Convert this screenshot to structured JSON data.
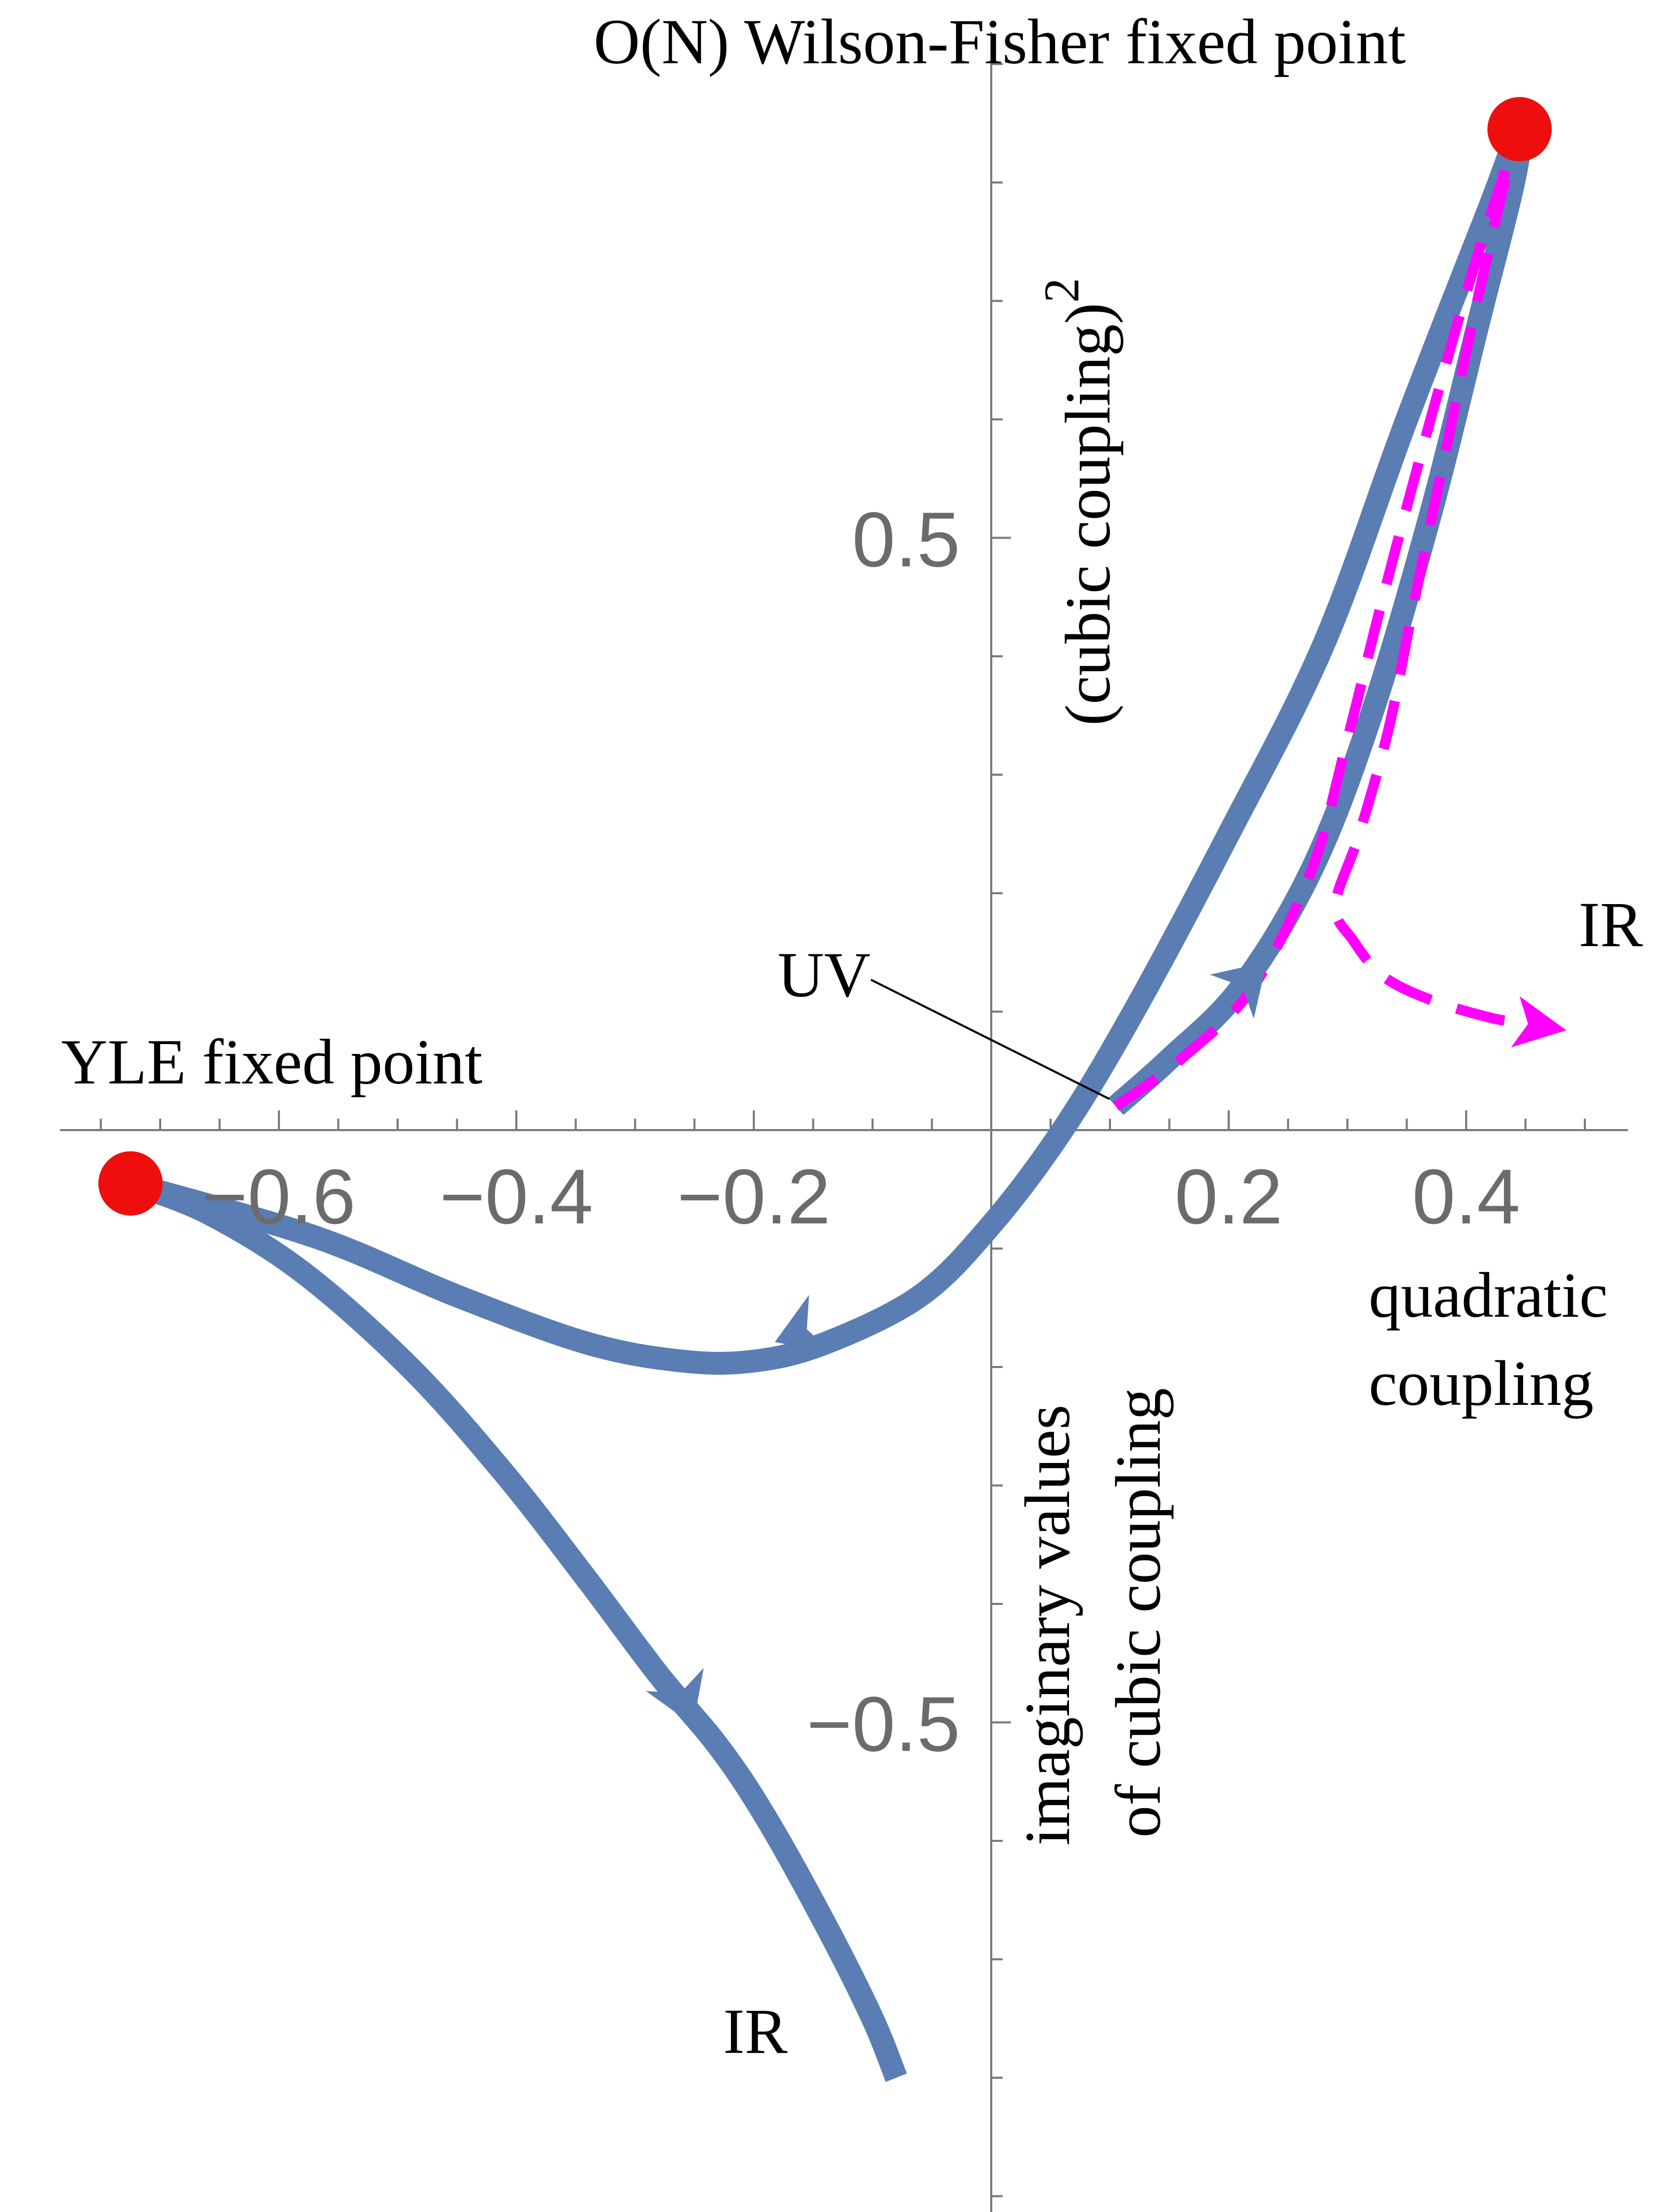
{
  "colors": {
    "flow": "#5a7db4",
    "flow_dashed": "#ff00ff",
    "fixed_point": "#ee0e0e",
    "axis": "#7a7a7a",
    "tick_label": "#6b6b6b",
    "annotation": "#000000"
  },
  "chart_data": {
    "type": "line",
    "title": "",
    "xlabel": "quadratic coupling",
    "xlabel_lines": [
      "quadratic",
      "coupling"
    ],
    "ylabel": "(cubic coupling)²",
    "ylabel_text": "(cubic coupling)",
    "ylabel_superscript": "2",
    "ylabel_negative_lines": [
      "imaginary values",
      "of cubic coupling"
    ],
    "xlim": [
      -0.78,
      0.51
    ],
    "ylim": [
      -0.91,
      0.94
    ],
    "x_ticks": [
      -0.6,
      -0.4,
      -0.2,
      0.2,
      0.4
    ],
    "x_tick_labels": [
      "−0.6",
      "−0.4",
      "−0.2",
      "0.2",
      "0.4"
    ],
    "y_ticks": [
      0.5,
      -0.5
    ],
    "y_tick_labels": [
      "0.5",
      "−0.5"
    ],
    "grid": false,
    "fixed_points": [
      {
        "name": "YLE fixed point",
        "x": -0.725,
        "y": -0.045
      },
      {
        "name": "O(N) Wilson-Fisher fixed point",
        "x": 0.445,
        "y": 0.845
      }
    ],
    "series": [
      {
        "style": "solid",
        "x": [
          0.105,
          0.15,
          0.21,
          0.27,
          0.32,
          0.37,
          0.41,
          0.44,
          0.445,
          0.42,
          0.35,
          0.28,
          0.2,
          0.12,
          0.06,
          0.0,
          -0.06,
          -0.14,
          -0.2,
          -0.26,
          -0.34,
          -0.45,
          -0.57,
          -0.725
        ],
        "y": [
          0.02,
          0.06,
          0.12,
          0.22,
          0.35,
          0.52,
          0.68,
          0.8,
          0.845,
          0.78,
          0.6,
          0.41,
          0.25,
          0.1,
          0.0,
          -0.08,
          -0.14,
          -0.18,
          -0.195,
          -0.195,
          -0.18,
          -0.14,
          -0.09,
          -0.045
        ]
      },
      {
        "style": "solid",
        "x": [
          -0.725,
          -0.66,
          -0.58,
          -0.49,
          -0.41,
          -0.34,
          -0.28,
          -0.23,
          -0.19,
          -0.14,
          -0.1,
          -0.08
        ],
        "y": [
          -0.045,
          -0.07,
          -0.12,
          -0.2,
          -0.29,
          -0.38,
          -0.46,
          -0.52,
          -0.58,
          -0.67,
          -0.75,
          -0.8
        ]
      },
      {
        "style": "dashed",
        "x": [
          0.105,
          0.16,
          0.22,
          0.27,
          0.3,
          0.33,
          0.37,
          0.41,
          0.44,
          0.445,
          0.43,
          0.405,
          0.38,
          0.355,
          0.335,
          0.31,
          0.29,
          0.305,
          0.33,
          0.37,
          0.42,
          0.45
        ],
        "y": [
          0.02,
          0.06,
          0.12,
          0.22,
          0.33,
          0.45,
          0.6,
          0.74,
          0.83,
          0.845,
          0.79,
          0.68,
          0.56,
          0.44,
          0.34,
          0.25,
          0.19,
          0.16,
          0.13,
          0.11,
          0.095,
          0.09
        ]
      }
    ],
    "flow_arrows": [
      {
        "style": "solid",
        "x": 0.215,
        "y": 0.125,
        "to_x": 0.225,
        "to_y": 0.135
      },
      {
        "style": "solid",
        "x": -0.16,
        "y": -0.17,
        "to_x": -0.18,
        "to_y": -0.178
      },
      {
        "style": "solid",
        "x": -0.26,
        "y": -0.48,
        "to_x": -0.252,
        "to_y": -0.5
      },
      {
        "style": "dashed",
        "x": 0.45,
        "y": 0.09,
        "to_x": 0.47,
        "to_y": 0.09
      }
    ],
    "annotations": [
      {
        "text": "UV",
        "x": 0.105,
        "y": 0.02
      },
      {
        "text": "IR",
        "x": 0.475,
        "y": 0.155
      },
      {
        "text": "IR",
        "x": -0.195,
        "y": -0.76
      }
    ]
  }
}
